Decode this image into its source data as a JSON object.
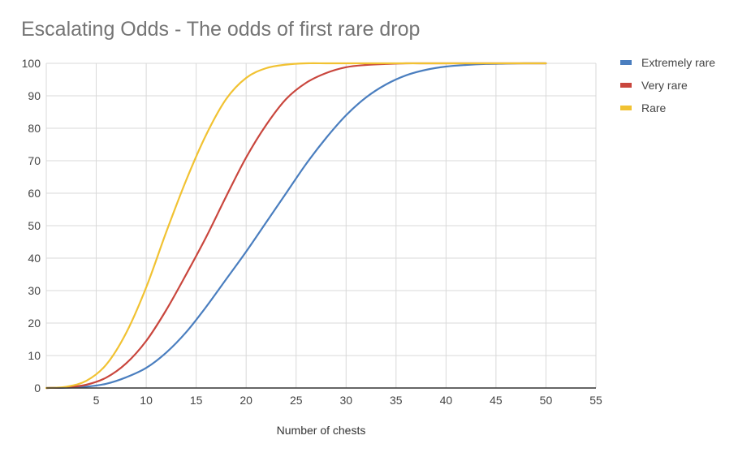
{
  "chart_data": {
    "type": "line",
    "title": "Escalating Odds - The odds of first rare drop",
    "xlabel": "Number of chests",
    "ylabel": "",
    "xlim": [
      0,
      55
    ],
    "ylim": [
      0,
      100
    ],
    "xticks": [
      5,
      10,
      15,
      20,
      25,
      30,
      35,
      40,
      45,
      50,
      55
    ],
    "yticks": [
      0,
      10,
      20,
      30,
      40,
      50,
      60,
      70,
      80,
      90,
      100
    ],
    "grid": true,
    "legend_position": "right",
    "x": [
      0,
      2,
      4,
      6,
      8,
      10,
      12,
      14,
      16,
      18,
      20,
      22,
      24,
      26,
      28,
      30,
      32,
      34,
      36,
      38,
      40,
      42,
      44,
      46,
      48,
      50
    ],
    "series": [
      {
        "name": "Extremely rare",
        "color": "#4a7ebf",
        "values": [
          0,
          0.1,
          0.4,
          1.3,
          3.3,
          6.2,
          10.9,
          17.2,
          25.0,
          33.5,
          42.0,
          51.0,
          60.0,
          69.0,
          77.0,
          84.0,
          89.5,
          93.5,
          96.3,
          98.0,
          99.0,
          99.5,
          99.8,
          99.9,
          100,
          100
        ]
      },
      {
        "name": "Very rare",
        "color": "#c9463d",
        "values": [
          0,
          0.2,
          1.0,
          3.2,
          7.6,
          14.5,
          24.0,
          35.0,
          46.5,
          59.0,
          71.0,
          81.0,
          89.0,
          94.0,
          97.0,
          98.8,
          99.5,
          99.8,
          100,
          100,
          100,
          100,
          100,
          100,
          100,
          100
        ]
      },
      {
        "name": "Rare",
        "color": "#f1c232",
        "values": [
          0,
          0.4,
          2.2,
          7.2,
          17.0,
          31.0,
          48.0,
          64.0,
          78.0,
          89.0,
          95.5,
          98.5,
          99.6,
          100,
          100,
          100,
          100,
          100,
          100,
          100,
          100,
          100,
          100,
          100,
          100,
          100
        ]
      }
    ]
  }
}
